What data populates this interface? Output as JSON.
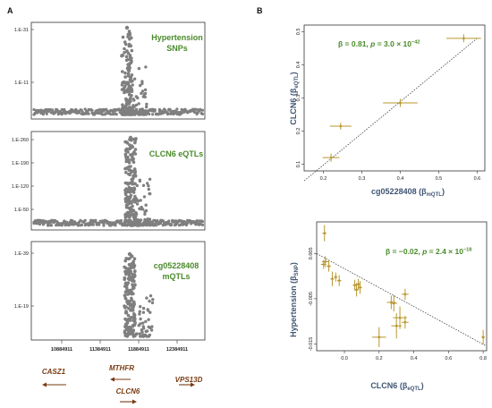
{
  "panel_labels": {
    "a": "A",
    "b": "B"
  },
  "panel_a": {
    "subplots": [
      {
        "label_line1": "Hypertension",
        "label_line2": "SNPs",
        "yticks": [
          "1.E-31",
          "1.E-11"
        ]
      },
      {
        "label_line1": "CLCN6 eQTLs",
        "label_line2": "",
        "yticks": [
          "1.E-260",
          "1.E-190",
          "1.E-120",
          "1.E-50"
        ]
      },
      {
        "label_line1": "cg05228408",
        "label_line2": "mQTLs",
        "yticks": [
          "1.E-39",
          "1.E-19"
        ]
      }
    ],
    "xticks": [
      "10884911",
      "11384911",
      "11884911",
      "12384911"
    ],
    "genes": [
      {
        "name": "CASZ1",
        "direction": "left"
      },
      {
        "name": "MTHFR",
        "direction": "left"
      },
      {
        "name": "CLCN6",
        "direction": "right"
      },
      {
        "name": "VPS13D",
        "direction": "right"
      }
    ],
    "colors": {
      "points": "#7f7f7f",
      "gene": "#7a3b12",
      "label": "#4a8a2a"
    }
  },
  "chart_data": [
    {
      "type": "scatter",
      "title": "",
      "xlabel_main": "cg05228408",
      "xlabel_sub": "mQTL",
      "ylabel_main": "CLCN6",
      "ylabel_sub": "eQTL",
      "xlim": [
        0.15,
        0.62
      ],
      "ylim": [
        0.08,
        0.52
      ],
      "xticks": [
        "0.2",
        "0.3",
        "0.4",
        "0.5",
        "0.6"
      ],
      "yticks": [
        "0.1",
        "0.2",
        "0.3",
        "0.4",
        "0.5"
      ],
      "annotation": {
        "prefix": "β = 0.81, ",
        "p": "p",
        "mid": " = 3.0 × 10",
        "exp": "−42"
      },
      "points": [
        {
          "x": 0.22,
          "y": 0.12,
          "xerr": 0.022,
          "yerr": 0.012
        },
        {
          "x": 0.245,
          "y": 0.215,
          "xerr": 0.028,
          "yerr": 0.01
        },
        {
          "x": 0.4,
          "y": 0.285,
          "xerr": 0.045,
          "yerr": 0.012
        },
        {
          "x": 0.565,
          "y": 0.48,
          "xerr": 0.045,
          "yerr": 0.012
        }
      ],
      "fit": {
        "x0": 0.15,
        "y0": 0.05,
        "x1": 0.6,
        "y1": 0.48
      }
    },
    {
      "type": "scatter",
      "title": "",
      "xlabel_main": "CLCN6",
      "xlabel_sub": "eQTL",
      "ylabel_main": "Hypertension",
      "ylabel_sub": "SNP",
      "xlim": [
        -0.16,
        0.82
      ],
      "ylim": [
        -0.0165,
        0.012
      ],
      "xticks": [
        "0.0",
        "0.2",
        "0.4",
        "0.6",
        "0.8"
      ],
      "yticks": [
        "0.005",
        "-0.005",
        "-0.015"
      ],
      "annotation": {
        "prefix": "β = −0.02, ",
        "p": "p",
        "mid": " = 2.4 × 10",
        "exp": "−18"
      },
      "points": [
        {
          "x": -0.115,
          "y": 0.0095,
          "xerr": 0.012,
          "yerr": 0.0018
        },
        {
          "x": -0.11,
          "y": 0.0032,
          "xerr": 0.02,
          "yerr": 0.0012
        },
        {
          "x": -0.12,
          "y": 0.0026,
          "xerr": 0.015,
          "yerr": 0.001
        },
        {
          "x": -0.09,
          "y": 0.0022,
          "xerr": 0.012,
          "yerr": 0.0012
        },
        {
          "x": -0.07,
          "y": -0.0006,
          "xerr": 0.01,
          "yerr": 0.0016
        },
        {
          "x": -0.05,
          "y": -0.0002,
          "xerr": 0.01,
          "yerr": 0.001
        },
        {
          "x": -0.03,
          "y": -0.001,
          "xerr": 0.012,
          "yerr": 0.0012
        },
        {
          "x": 0.06,
          "y": -0.002,
          "xerr": 0.012,
          "yerr": 0.0012
        },
        {
          "x": 0.07,
          "y": -0.003,
          "xerr": 0.012,
          "yerr": 0.0015
        },
        {
          "x": 0.08,
          "y": -0.0018,
          "xerr": 0.012,
          "yerr": 0.0012
        },
        {
          "x": 0.09,
          "y": -0.0025,
          "xerr": 0.012,
          "yerr": 0.0014
        },
        {
          "x": 0.2,
          "y": -0.0135,
          "xerr": 0.04,
          "yerr": 0.0022
        },
        {
          "x": 0.27,
          "y": -0.0058,
          "xerr": 0.025,
          "yerr": 0.0015
        },
        {
          "x": 0.285,
          "y": -0.006,
          "xerr": 0.02,
          "yerr": 0.0018
        },
        {
          "x": 0.3,
          "y": -0.011,
          "xerr": 0.03,
          "yerr": 0.0028
        },
        {
          "x": 0.32,
          "y": -0.0092,
          "xerr": 0.04,
          "yerr": 0.0025
        },
        {
          "x": 0.35,
          "y": -0.004,
          "xerr": 0.02,
          "yerr": 0.0012
        },
        {
          "x": 0.35,
          "y": -0.0102,
          "xerr": 0.02,
          "yerr": 0.0014
        },
        {
          "x": 0.8,
          "y": -0.0135,
          "xerr": 0.01,
          "yerr": 0.0016
        }
      ],
      "fit": {
        "x0": -0.16,
        "y0": 0.005,
        "x1": 0.82,
        "y1": -0.0155
      }
    }
  ]
}
